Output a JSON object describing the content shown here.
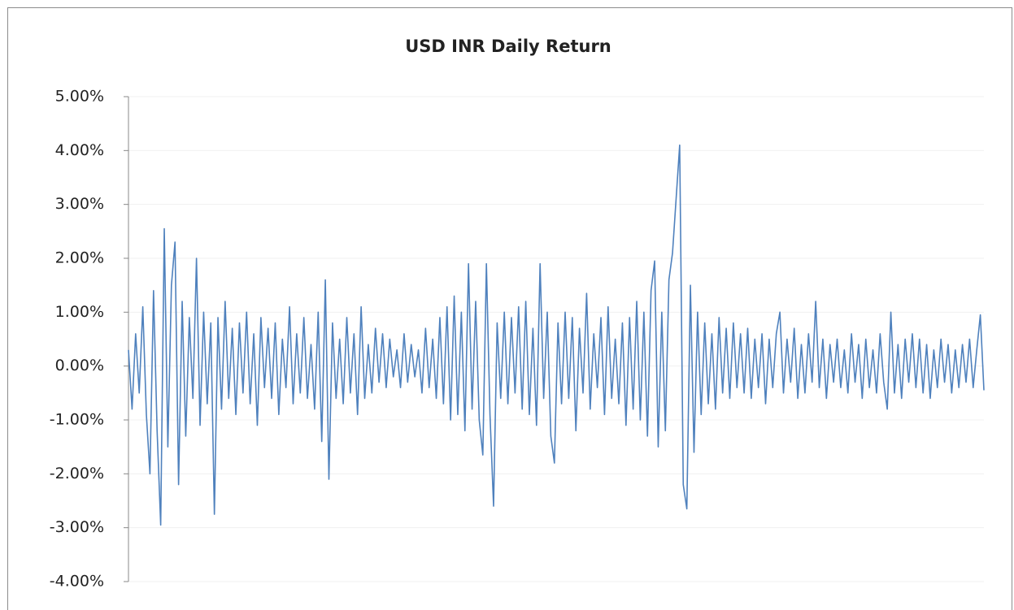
{
  "chart_data": {
    "type": "line",
    "title": "USD INR Daily Return",
    "series": [
      {
        "color": "#4f81bd",
        "values": [
          0.3,
          -0.8,
          0.6,
          -0.5,
          1.1,
          -0.9,
          -2.0,
          1.4,
          -1.2,
          -2.95,
          2.55,
          -1.5,
          1.5,
          2.3,
          -2.2,
          1.2,
          -1.3,
          0.9,
          -0.6,
          2.0,
          -1.1,
          1.0,
          -0.7,
          0.8,
          -2.75,
          0.9,
          -0.8,
          1.2,
          -0.6,
          0.7,
          -0.9,
          0.8,
          -0.5,
          1.0,
          -0.7,
          0.6,
          -1.1,
          0.9,
          -0.4,
          0.7,
          -0.6,
          0.8,
          -0.9,
          0.5,
          -0.4,
          1.1,
          -0.7,
          0.6,
          -0.5,
          0.9,
          -0.6,
          0.4,
          -0.8,
          1.0,
          -1.4,
          1.6,
          -2.1,
          0.8,
          -0.6,
          0.5,
          -0.7,
          0.9,
          -0.5,
          0.6,
          -0.9,
          1.1,
          -0.6,
          0.4,
          -0.5,
          0.7,
          -0.3,
          0.6,
          -0.4,
          0.5,
          -0.2,
          0.3,
          -0.4,
          0.6,
          -0.3,
          0.4,
          -0.2,
          0.3,
          -0.5,
          0.7,
          -0.4,
          0.5,
          -0.6,
          0.9,
          -0.7,
          1.1,
          -1.0,
          1.3,
          -0.9,
          1.0,
          -1.2,
          1.9,
          -0.8,
          1.2,
          -1.0,
          -1.65,
          1.9,
          -0.9,
          -2.6,
          0.8,
          -0.6,
          1.0,
          -0.7,
          0.9,
          -0.5,
          1.1,
          -0.8,
          1.2,
          -0.9,
          0.7,
          -1.1,
          1.9,
          -0.6,
          1.0,
          -1.3,
          -1.8,
          0.8,
          -0.7,
          1.0,
          -0.6,
          0.9,
          -1.2,
          0.7,
          -0.5,
          1.35,
          -0.8,
          0.6,
          -0.4,
          0.9,
          -0.9,
          1.1,
          -0.6,
          0.5,
          -0.7,
          0.8,
          -1.1,
          0.9,
          -0.8,
          1.2,
          -1.0,
          1.0,
          -1.3,
          1.4,
          1.95,
          -1.5,
          1.0,
          -1.2,
          1.6,
          2.1,
          3.1,
          4.1,
          -2.2,
          -2.65,
          1.5,
          -1.6,
          1.0,
          -0.9,
          0.8,
          -0.7,
          0.6,
          -0.8,
          0.9,
          -0.5,
          0.7,
          -0.6,
          0.8,
          -0.4,
          0.6,
          -0.5,
          0.7,
          -0.6,
          0.5,
          -0.4,
          0.6,
          -0.7,
          0.5,
          -0.4,
          0.6,
          1.0,
          -0.5,
          0.5,
          -0.3,
          0.7,
          -0.6,
          0.4,
          -0.5,
          0.6,
          -0.3,
          1.2,
          -0.4,
          0.5,
          -0.6,
          0.4,
          -0.3,
          0.5,
          -0.4,
          0.3,
          -0.5,
          0.6,
          -0.3,
          0.4,
          -0.6,
          0.5,
          -0.4,
          0.3,
          -0.5,
          0.6,
          -0.3,
          -0.8,
          1.0,
          -0.5,
          0.4,
          -0.6,
          0.5,
          -0.3,
          0.6,
          -0.4,
          0.5,
          -0.5,
          0.4,
          -0.6,
          0.3,
          -0.4,
          0.5,
          -0.3,
          0.4,
          -0.5,
          0.3,
          -0.4,
          0.4,
          -0.3,
          0.5,
          -0.4,
          0.3,
          0.95,
          -0.45
        ]
      }
    ],
    "ylim": [
      -4,
      5
    ],
    "yticks": [
      {
        "value": 5,
        "label": "5.00%"
      },
      {
        "value": 4,
        "label": "4.00%"
      },
      {
        "value": 3,
        "label": "3.00%"
      },
      {
        "value": 2,
        "label": "2.00%"
      },
      {
        "value": 1,
        "label": "1.00%"
      },
      {
        "value": 0,
        "label": "0.00%"
      },
      {
        "value": -1,
        "label": "-1.00%"
      },
      {
        "value": -2,
        "label": "-2.00%"
      },
      {
        "value": -3,
        "label": "-3.00%"
      },
      {
        "value": -4,
        "label": "-4.00%"
      }
    ],
    "grid": true
  }
}
